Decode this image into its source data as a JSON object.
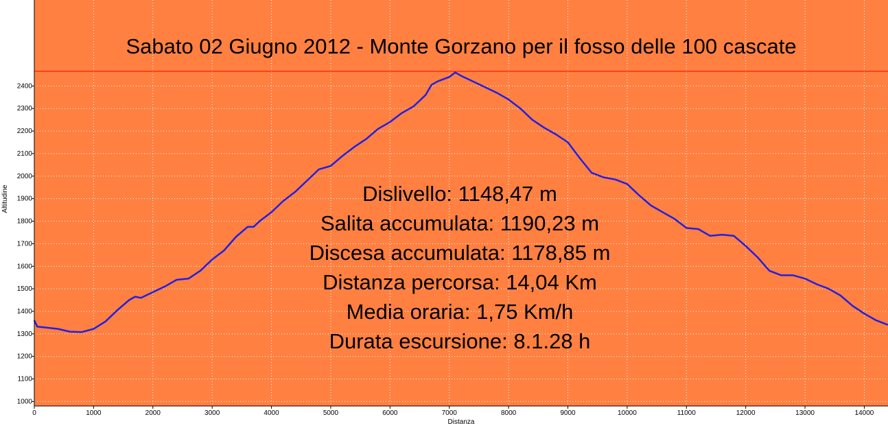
{
  "chart_data": {
    "type": "line",
    "title": "Sabato 02 Giugno 2012 - Monte Gorzano per il fosso delle 100 cascate",
    "xlabel": "Distanza",
    "ylabel": "Altitudine",
    "xlim": [
      0,
      14400
    ],
    "ylim": [
      980,
      2465
    ],
    "grid": true,
    "x_ticks": [
      0,
      1000,
      2000,
      3000,
      4000,
      5000,
      6000,
      7000,
      8000,
      9000,
      10000,
      11000,
      12000,
      13000,
      14000
    ],
    "y_ticks": [
      1000,
      1100,
      1200,
      1300,
      1400,
      1500,
      1600,
      1700,
      1800,
      1900,
      2000,
      2100,
      2200,
      2300,
      2400
    ],
    "series": [
      {
        "color": "#1f1fe6",
        "x": [
          0,
          50,
          200,
          400,
          600,
          800,
          1000,
          1200,
          1400,
          1600,
          1700,
          1800,
          2000,
          2200,
          2400,
          2600,
          2800,
          3000,
          3200,
          3400,
          3600,
          3700,
          3800,
          4000,
          4200,
          4400,
          4600,
          4800,
          5000,
          5200,
          5400,
          5600,
          5800,
          6000,
          6200,
          6400,
          6600,
          6700,
          6800,
          7000,
          7100,
          7200,
          7400,
          7600,
          7800,
          8000,
          8200,
          8400,
          8600,
          8800,
          9000,
          9200,
          9400,
          9600,
          9800,
          10000,
          10200,
          10400,
          10600,
          10800,
          11000,
          11200,
          11400,
          11600,
          11800,
          12000,
          12200,
          12400,
          12600,
          12800,
          13000,
          13200,
          13400,
          13600,
          13800,
          14000,
          14200,
          14400
        ],
        "y": [
          1360,
          1332,
          1328,
          1322,
          1310,
          1308,
          1322,
          1355,
          1405,
          1450,
          1465,
          1460,
          1485,
          1510,
          1540,
          1545,
          1580,
          1630,
          1670,
          1730,
          1775,
          1775,
          1800,
          1840,
          1890,
          1930,
          1980,
          2030,
          2045,
          2090,
          2130,
          2165,
          2210,
          2240,
          2280,
          2310,
          2360,
          2405,
          2420,
          2440,
          2460,
          2445,
          2420,
          2395,
          2370,
          2340,
          2300,
          2250,
          2215,
          2185,
          2150,
          2080,
          2015,
          1995,
          1985,
          1965,
          1915,
          1870,
          1840,
          1810,
          1770,
          1765,
          1735,
          1740,
          1735,
          1690,
          1640,
          1580,
          1560,
          1560,
          1545,
          1520,
          1500,
          1470,
          1425,
          1390,
          1360,
          1340
        ]
      }
    ],
    "annotations": [
      "Dislivello: 1148,47 m",
      "Salita accumulata: 1190,23 m",
      "Discesa accumulata: 1178,85 m",
      "Distanza percorsa: 14,04 Km",
      "Media oraria: 1,75 Km/h",
      "Durata escursione: 8.1.28 h"
    ]
  },
  "colors": {
    "background": "#ff8040",
    "line": "#1f1fe6",
    "grid": "#ffffff",
    "title_rule": "#ff0000"
  }
}
